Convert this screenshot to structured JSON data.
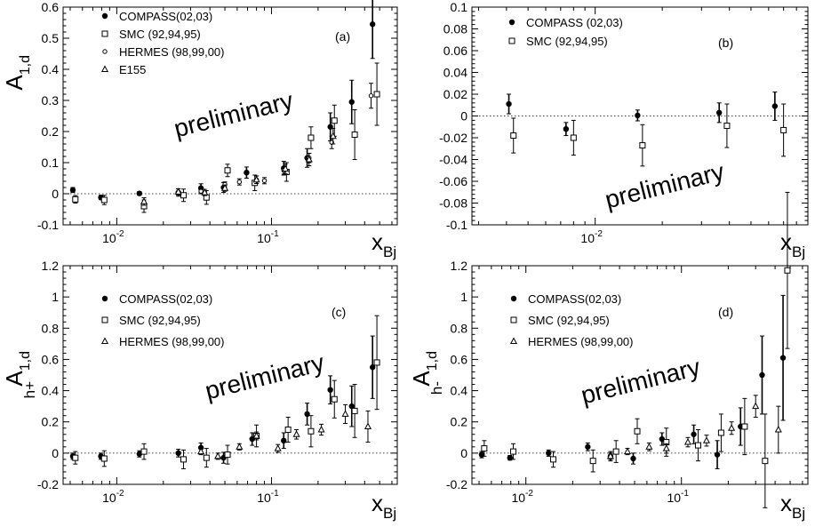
{
  "chart_data": [
    {
      "type": "scatter",
      "panel_label": "(a)",
      "annotation": "preliminary",
      "xlabel": "x",
      "xlabel_sub": "Bj",
      "ylabel": "A",
      "ylabel_sub": "1,d",
      "ylabel_sup": "",
      "xscale": "log",
      "xlim": [
        0.0045,
        0.65
      ],
      "xticks": [
        {
          "v": 0.01,
          "base": "10",
          "exp": "-2"
        },
        {
          "v": 0.1,
          "base": "10",
          "exp": "-1"
        }
      ],
      "ylim": [
        -0.1,
        0.6
      ],
      "yticks": [
        "-0.1",
        "0",
        "0.1",
        "0.2",
        "0.3",
        "0.4",
        "0.5",
        "0.6"
      ],
      "series": [
        {
          "name": "COMPASS(02,03)",
          "marker": "filled-circle",
          "points": [
            {
              "x": 0.0052,
              "y": 0.012,
              "e": 0.008
            },
            {
              "x": 0.0079,
              "y": -0.012,
              "e": 0.007
            },
            {
              "x": 0.014,
              "y": 0.001,
              "e": 0.006
            },
            {
              "x": 0.025,
              "y": 0.004,
              "e": 0.012
            },
            {
              "x": 0.035,
              "y": 0.018,
              "e": 0.014
            },
            {
              "x": 0.049,
              "y": 0.02,
              "e": 0.016
            },
            {
              "x": 0.069,
              "y": 0.068,
              "e": 0.018
            },
            {
              "x": 0.12,
              "y": 0.082,
              "e": 0.022
            },
            {
              "x": 0.17,
              "y": 0.115,
              "e": 0.03
            },
            {
              "x": 0.24,
              "y": 0.215,
              "e": 0.045
            },
            {
              "x": 0.33,
              "y": 0.295,
              "e": 0.07
            },
            {
              "x": 0.45,
              "y": 0.545,
              "e": 0.11
            }
          ]
        },
        {
          "name": "SMC (92,94,95)",
          "marker": "open-square",
          "points": [
            {
              "x": 0.0054,
              "y": -0.018,
              "e": 0.012
            },
            {
              "x": 0.0083,
              "y": -0.02,
              "e": 0.015
            },
            {
              "x": 0.015,
              "y": -0.04,
              "e": 0.02
            },
            {
              "x": 0.027,
              "y": -0.005,
              "e": 0.02
            },
            {
              "x": 0.038,
              "y": -0.012,
              "e": 0.022
            },
            {
              "x": 0.052,
              "y": 0.075,
              "e": 0.02
            },
            {
              "x": 0.078,
              "y": 0.035,
              "e": 0.025
            },
            {
              "x": 0.125,
              "y": 0.07,
              "e": 0.03
            },
            {
              "x": 0.18,
              "y": 0.18,
              "e": 0.035
            },
            {
              "x": 0.255,
              "y": 0.235,
              "e": 0.05
            },
            {
              "x": 0.345,
              "y": 0.19,
              "e": 0.08
            },
            {
              "x": 0.48,
              "y": 0.32,
              "e": 0.1
            }
          ]
        },
        {
          "name": "HERMES (98,99,00)",
          "marker": "small-open-circle",
          "points": [
            {
              "x": 0.035,
              "y": 0.008,
              "e": 0.008
            },
            {
              "x": 0.05,
              "y": 0.03,
              "e": 0.008
            },
            {
              "x": 0.062,
              "y": 0.038,
              "e": 0.01
            },
            {
              "x": 0.08,
              "y": 0.045,
              "e": 0.012
            },
            {
              "x": 0.09,
              "y": 0.042,
              "e": 0.01
            },
            {
              "x": 0.12,
              "y": 0.075,
              "e": 0.012
            },
            {
              "x": 0.175,
              "y": 0.115,
              "e": 0.015
            },
            {
              "x": 0.245,
              "y": 0.165,
              "e": 0.02
            },
            {
              "x": 0.44,
              "y": 0.315,
              "e": 0.04
            }
          ]
        },
        {
          "name": "E155",
          "marker": "open-triangle",
          "points": [
            {
              "x": 0.015,
              "y": -0.025,
              "e": 0.012
            },
            {
              "x": 0.025,
              "y": 0.006,
              "e": 0.01
            },
            {
              "x": 0.037,
              "y": 0.004,
              "e": 0.01
            },
            {
              "x": 0.05,
              "y": 0.018,
              "e": 0.01
            },
            {
              "x": 0.08,
              "y": 0.045,
              "e": 0.012
            },
            {
              "x": 0.123,
              "y": 0.08,
              "e": 0.015
            },
            {
              "x": 0.175,
              "y": 0.11,
              "e": 0.02
            },
            {
              "x": 0.25,
              "y": 0.185,
              "e": 0.025
            }
          ]
        }
      ]
    },
    {
      "type": "scatter",
      "panel_label": "(b)",
      "annotation": "preliminary",
      "xlabel": "x",
      "xlabel_sub": "Bj",
      "ylabel": "",
      "ylabel_sub": "",
      "ylabel_sup": "",
      "xscale": "log",
      "xlim": [
        0.0028,
        0.09
      ],
      "xticks": [
        {
          "v": 0.01,
          "base": "10",
          "exp": "-2"
        }
      ],
      "ylim": [
        -0.1,
        0.1
      ],
      "yticks": [
        "-0.1",
        "-0.08",
        "-0.06",
        "-0.04",
        "-0.02",
        "0",
        "0.02",
        "0.04",
        "0.06",
        "0.08",
        "0.1"
      ],
      "series": [
        {
          "name": "COMPASS (02,03)",
          "marker": "filled-circle",
          "points": [
            {
              "x": 0.0041,
              "y": 0.011,
              "e": 0.009
            },
            {
              "x": 0.0074,
              "y": -0.012,
              "e": 0.006
            },
            {
              "x": 0.0155,
              "y": 0.0005,
              "e": 0.005
            },
            {
              "x": 0.036,
              "y": 0.003,
              "e": 0.009
            },
            {
              "x": 0.064,
              "y": 0.009,
              "e": 0.013
            }
          ]
        },
        {
          "name": "SMC (92,94,95)",
          "marker": "open-square",
          "points": [
            {
              "x": 0.0043,
              "y": -0.018,
              "e": 0.016
            },
            {
              "x": 0.008,
              "y": -0.02,
              "e": 0.016
            },
            {
              "x": 0.0163,
              "y": -0.027,
              "e": 0.019
            },
            {
              "x": 0.039,
              "y": -0.009,
              "e": 0.02
            },
            {
              "x": 0.07,
              "y": -0.013,
              "e": 0.024
            }
          ]
        }
      ]
    },
    {
      "type": "scatter",
      "panel_label": "(c)",
      "annotation": "preliminary",
      "xlabel": "x",
      "xlabel_sub": "Bj",
      "ylabel": "A",
      "ylabel_sub": "1,d",
      "ylabel_sup": "h+",
      "xscale": "log",
      "xlim": [
        0.0045,
        0.65
      ],
      "xticks": [
        {
          "v": 0.01,
          "base": "10",
          "exp": "-2"
        },
        {
          "v": 0.1,
          "base": "10",
          "exp": "-1"
        }
      ],
      "ylim": [
        -0.2,
        1.2
      ],
      "yticks": [
        "-0.2",
        "0",
        "0.2",
        "0.4",
        "0.6",
        "0.8",
        "1",
        "1.2"
      ],
      "series": [
        {
          "name": "COMPASS(02,03)",
          "marker": "filled-circle",
          "points": [
            {
              "x": 0.0052,
              "y": -0.02,
              "e": 0.02
            },
            {
              "x": 0.0079,
              "y": -0.02,
              "e": 0.02
            },
            {
              "x": 0.014,
              "y": -0.005,
              "e": 0.02
            },
            {
              "x": 0.025,
              "y": 0.0,
              "e": 0.025
            },
            {
              "x": 0.035,
              "y": 0.035,
              "e": 0.03
            },
            {
              "x": 0.049,
              "y": -0.03,
              "e": 0.035
            },
            {
              "x": 0.075,
              "y": 0.09,
              "e": 0.04
            },
            {
              "x": 0.12,
              "y": 0.08,
              "e": 0.05
            },
            {
              "x": 0.17,
              "y": 0.25,
              "e": 0.07
            },
            {
              "x": 0.24,
              "y": 0.405,
              "e": 0.09
            },
            {
              "x": 0.33,
              "y": 0.3,
              "e": 0.13
            },
            {
              "x": 0.45,
              "y": 0.55,
              "e": 0.2
            }
          ]
        },
        {
          "name": "SMC (92,94,95)",
          "marker": "open-square",
          "points": [
            {
              "x": 0.0054,
              "y": -0.03,
              "e": 0.04
            },
            {
              "x": 0.0083,
              "y": -0.035,
              "e": 0.05
            },
            {
              "x": 0.015,
              "y": 0.01,
              "e": 0.05
            },
            {
              "x": 0.027,
              "y": -0.04,
              "e": 0.06
            },
            {
              "x": 0.038,
              "y": -0.03,
              "e": 0.06
            },
            {
              "x": 0.052,
              "y": -0.01,
              "e": 0.06
            },
            {
              "x": 0.08,
              "y": 0.11,
              "e": 0.07
            },
            {
              "x": 0.128,
              "y": 0.15,
              "e": 0.08
            },
            {
              "x": 0.18,
              "y": 0.14,
              "e": 0.1
            },
            {
              "x": 0.255,
              "y": 0.345,
              "e": 0.12
            },
            {
              "x": 0.345,
              "y": 0.27,
              "e": 0.17
            },
            {
              "x": 0.48,
              "y": 0.58,
              "e": 0.3
            }
          ]
        },
        {
          "name": "HERMES (98,99,00)",
          "marker": "open-triangle",
          "points": [
            {
              "x": 0.035,
              "y": 0.01,
              "e": 0.02
            },
            {
              "x": 0.045,
              "y": -0.02,
              "e": 0.02
            },
            {
              "x": 0.062,
              "y": 0.04,
              "e": 0.02
            },
            {
              "x": 0.08,
              "y": 0.11,
              "e": 0.025
            },
            {
              "x": 0.11,
              "y": 0.03,
              "e": 0.025
            },
            {
              "x": 0.145,
              "y": 0.12,
              "e": 0.03
            },
            {
              "x": 0.21,
              "y": 0.15,
              "e": 0.035
            },
            {
              "x": 0.3,
              "y": 0.25,
              "e": 0.06
            },
            {
              "x": 0.42,
              "y": 0.17,
              "e": 0.1
            }
          ]
        }
      ]
    },
    {
      "type": "scatter",
      "panel_label": "(d)",
      "annotation": "preliminary",
      "xlabel": "x",
      "xlabel_sub": "Bj",
      "ylabel": "A",
      "ylabel_sub": "1,d",
      "ylabel_sup": "h-",
      "xscale": "log",
      "xlim": [
        0.0045,
        0.65
      ],
      "xticks": [
        {
          "v": 0.01,
          "base": "10",
          "exp": "-2"
        },
        {
          "v": 0.1,
          "base": "10",
          "exp": "-1"
        }
      ],
      "ylim": [
        -0.2,
        1.2
      ],
      "yticks": [
        "-0.2",
        "0",
        "0.2",
        "0.4",
        "0.6",
        "0.8",
        "1",
        "1.2"
      ],
      "series": [
        {
          "name": "COMPASS(02,03)",
          "marker": "filled-circle",
          "points": [
            {
              "x": 0.0052,
              "y": -0.01,
              "e": 0.02
            },
            {
              "x": 0.0079,
              "y": -0.03,
              "e": 0.015
            },
            {
              "x": 0.014,
              "y": 0.0,
              "e": 0.02
            },
            {
              "x": 0.025,
              "y": 0.04,
              "e": 0.025
            },
            {
              "x": 0.035,
              "y": -0.02,
              "e": 0.03
            },
            {
              "x": 0.049,
              "y": -0.035,
              "e": 0.035
            },
            {
              "x": 0.075,
              "y": 0.09,
              "e": 0.04
            },
            {
              "x": 0.12,
              "y": 0.12,
              "e": 0.06
            },
            {
              "x": 0.17,
              "y": -0.01,
              "e": 0.09
            },
            {
              "x": 0.24,
              "y": 0.17,
              "e": 0.12
            },
            {
              "x": 0.33,
              "y": 0.5,
              "e": 0.25
            },
            {
              "x": 0.45,
              "y": 0.61,
              "e": 0.4
            }
          ]
        },
        {
          "name": "SMC (92,94,95)",
          "marker": "open-square",
          "points": [
            {
              "x": 0.0054,
              "y": 0.03,
              "e": 0.05
            },
            {
              "x": 0.0083,
              "y": 0.01,
              "e": 0.05
            },
            {
              "x": 0.015,
              "y": -0.04,
              "e": 0.05
            },
            {
              "x": 0.027,
              "y": -0.05,
              "e": 0.07
            },
            {
              "x": 0.038,
              "y": 0.01,
              "e": 0.07
            },
            {
              "x": 0.052,
              "y": 0.14,
              "e": 0.08
            },
            {
              "x": 0.08,
              "y": 0.07,
              "e": 0.09
            },
            {
              "x": 0.128,
              "y": 0.05,
              "e": 0.1
            },
            {
              "x": 0.18,
              "y": 0.13,
              "e": 0.12
            },
            {
              "x": 0.255,
              "y": 0.17,
              "e": 0.18
            },
            {
              "x": 0.345,
              "y": -0.05,
              "e": 0.3
            },
            {
              "x": 0.48,
              "y": 1.17,
              "e": 0.5
            }
          ]
        },
        {
          "name": "HERMES (98,99,00)",
          "marker": "open-triangle",
          "points": [
            {
              "x": 0.035,
              "y": -0.02,
              "e": 0.02
            },
            {
              "x": 0.045,
              "y": 0.01,
              "e": 0.02
            },
            {
              "x": 0.062,
              "y": 0.04,
              "e": 0.025
            },
            {
              "x": 0.08,
              "y": 0.03,
              "e": 0.03
            },
            {
              "x": 0.11,
              "y": 0.07,
              "e": 0.03
            },
            {
              "x": 0.145,
              "y": 0.08,
              "e": 0.035
            },
            {
              "x": 0.21,
              "y": 0.16,
              "e": 0.04
            },
            {
              "x": 0.3,
              "y": 0.3,
              "e": 0.07
            },
            {
              "x": 0.42,
              "y": 0.15,
              "e": 0.15
            }
          ]
        }
      ]
    }
  ]
}
